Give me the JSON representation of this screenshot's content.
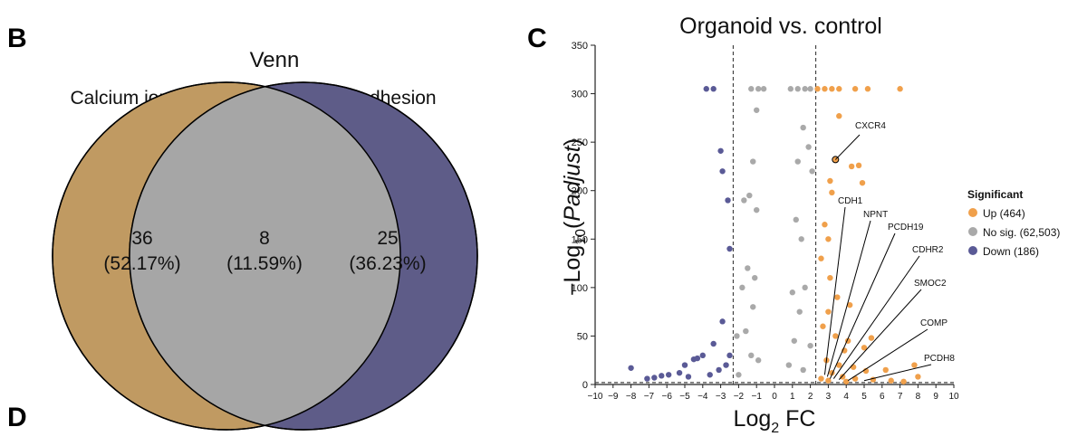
{
  "panels": {
    "b": "B",
    "c": "C",
    "d": "D"
  },
  "chart_data": [
    {
      "type": "venn",
      "title": "Venn",
      "sets": [
        {
          "name": "Calcium ion channel",
          "color": "#c09a62"
        },
        {
          "name": "Cell adhesion",
          "color": "#5e5c88"
        }
      ],
      "regions": [
        {
          "id": "only_a",
          "count": "36",
          "percent": "(52.17%)"
        },
        {
          "id": "overlap",
          "count": "8",
          "percent": "(11.59%)",
          "color": "#a6a6a6"
        },
        {
          "id": "only_b",
          "count": "25",
          "percent": "(36.23%)"
        }
      ]
    },
    {
      "type": "scatter",
      "title": "Organoid vs. control",
      "xlabel_main": "Log",
      "xlabel_sub": "2",
      "xlabel_tail": " FC",
      "ylabel_pre": "−Log",
      "ylabel_sub": "10",
      "ylabel_paren_open": "(",
      "ylabel_italic": "Padjust",
      "ylabel_paren_close": ")",
      "xlim": [
        -10,
        10
      ],
      "ylim": [
        0,
        350
      ],
      "xticks": [
        "−10",
        "−9",
        "−8",
        "−7",
        "−6",
        "−5",
        "−4",
        "−3",
        "−2",
        "−1",
        "0",
        "1",
        "2",
        "3",
        "4",
        "5",
        "6",
        "7",
        "8",
        "9",
        "10"
      ],
      "xtick_values": [
        -10,
        -9,
        -8,
        -7,
        -6,
        -5,
        -4,
        -3,
        -2,
        -1,
        0,
        1,
        2,
        3,
        4,
        5,
        6,
        7,
        8,
        9,
        10
      ],
      "yticks": [
        "0",
        "50",
        "100",
        "150",
        "200",
        "250",
        "300",
        "350"
      ],
      "ytick_values": [
        0,
        50,
        100,
        150,
        200,
        250,
        300,
        350
      ],
      "thresholds_x": [
        -2.3,
        2.3
      ],
      "threshold_y": 2,
      "legend": {
        "title": "Significant",
        "placement": "right",
        "entries": [
          {
            "label": "Up (464)",
            "color": "#f0a04b"
          },
          {
            "label": "No sig. (62,503)",
            "color": "#a9a9a9"
          },
          {
            "label": "Down (186)",
            "color": "#5a5a96"
          }
        ]
      },
      "series": [
        {
          "name": "Up",
          "color": "#f0a04b",
          "points": [
            [
              2.4,
              305
            ],
            [
              2.8,
              305
            ],
            [
              3.2,
              305
            ],
            [
              3.6,
              305
            ],
            [
              4.5,
              305
            ],
            [
              5.2,
              305
            ],
            [
              7,
              305
            ],
            [
              3.6,
              277
            ],
            [
              3.4,
              232
            ],
            [
              4.3,
              225
            ],
            [
              4.7,
              226
            ],
            [
              4.9,
              208
            ],
            [
              3.1,
              210
            ],
            [
              3.2,
              198
            ],
            [
              2.8,
              165
            ],
            [
              3.0,
              150
            ],
            [
              2.6,
              130
            ],
            [
              3.1,
              110
            ],
            [
              3.5,
              90
            ],
            [
              3.0,
              75
            ],
            [
              4.2,
              82
            ],
            [
              2.7,
              60
            ],
            [
              3.4,
              50
            ],
            [
              4.1,
              45
            ],
            [
              3.9,
              35
            ],
            [
              5.0,
              38
            ],
            [
              5.4,
              48
            ],
            [
              2.9,
              25
            ],
            [
              3.6,
              20
            ],
            [
              4.4,
              18
            ],
            [
              5.1,
              14
            ],
            [
              6.2,
              15
            ],
            [
              7.8,
              20
            ],
            [
              8.0,
              8
            ],
            [
              3.2,
              12
            ],
            [
              3.8,
              8
            ],
            [
              4.5,
              6
            ],
            [
              5.5,
              5
            ],
            [
              2.6,
              6
            ],
            [
              3.0,
              4
            ],
            [
              4.0,
              3
            ],
            [
              6.5,
              4
            ],
            [
              7.2,
              3
            ]
          ]
        },
        {
          "name": "No sig.",
          "color": "#a9a9a9",
          "points": [
            [
              -1.3,
              305
            ],
            [
              -0.9,
              305
            ],
            [
              -0.6,
              305
            ],
            [
              0.9,
              305
            ],
            [
              1.3,
              305
            ],
            [
              1.7,
              305
            ],
            [
              2.0,
              305
            ],
            [
              -1.0,
              283
            ],
            [
              -1.2,
              230
            ],
            [
              -1.7,
              190
            ],
            [
              1.6,
              265
            ],
            [
              1.9,
              245
            ],
            [
              1.3,
              230
            ],
            [
              2.1,
              220
            ],
            [
              -1.4,
              195
            ],
            [
              -1.0,
              180
            ],
            [
              1.2,
              170
            ],
            [
              1.5,
              150
            ],
            [
              -1.5,
              120
            ],
            [
              -1.1,
              110
            ],
            [
              -1.8,
              100
            ],
            [
              1.0,
              95
            ],
            [
              1.7,
              100
            ],
            [
              -1.2,
              80
            ],
            [
              1.4,
              75
            ],
            [
              -1.6,
              55
            ],
            [
              -2.1,
              50
            ],
            [
              1.1,
              45
            ],
            [
              2.0,
              40
            ],
            [
              -1.3,
              30
            ],
            [
              -0.9,
              25
            ],
            [
              0.8,
              20
            ],
            [
              1.6,
              15
            ],
            [
              -2.0,
              10
            ]
          ]
        },
        {
          "name": "Down",
          "color": "#5a5a96",
          "points": [
            [
              -3.8,
              305
            ],
            [
              -3.4,
              305
            ],
            [
              -3.0,
              241
            ],
            [
              -2.9,
              220
            ],
            [
              -2.6,
              190
            ],
            [
              -2.5,
              140
            ],
            [
              -2.9,
              65
            ],
            [
              -3.4,
              42
            ],
            [
              -4.0,
              30
            ],
            [
              -4.3,
              27
            ],
            [
              -4.5,
              26
            ],
            [
              -5.0,
              20
            ],
            [
              -8.0,
              17
            ],
            [
              -5.3,
              12
            ],
            [
              -5.9,
              10
            ],
            [
              -6.3,
              9
            ],
            [
              -6.7,
              7
            ],
            [
              -7.1,
              6
            ],
            [
              -4.8,
              8
            ],
            [
              -3.6,
              10
            ],
            [
              -3.1,
              15
            ],
            [
              -2.7,
              20
            ],
            [
              -2.5,
              30
            ]
          ]
        }
      ],
      "annotations": [
        {
          "label": "CXCR4",
          "target": [
            3.4,
            232
          ]
        },
        {
          "label": "CDH1",
          "target": [
            2.8,
            10
          ]
        },
        {
          "label": "NPNT",
          "target": [
            2.95,
            8
          ]
        },
        {
          "label": "PCDH19",
          "target": [
            3.1,
            6
          ]
        },
        {
          "label": "CDHR2",
          "target": [
            3.3,
            6
          ]
        },
        {
          "label": "SMOC2",
          "target": [
            3.6,
            5
          ]
        },
        {
          "label": "COMP",
          "target": [
            4.1,
            4
          ]
        },
        {
          "label": "PCDH8",
          "target": [
            5.0,
            4
          ]
        }
      ]
    }
  ]
}
